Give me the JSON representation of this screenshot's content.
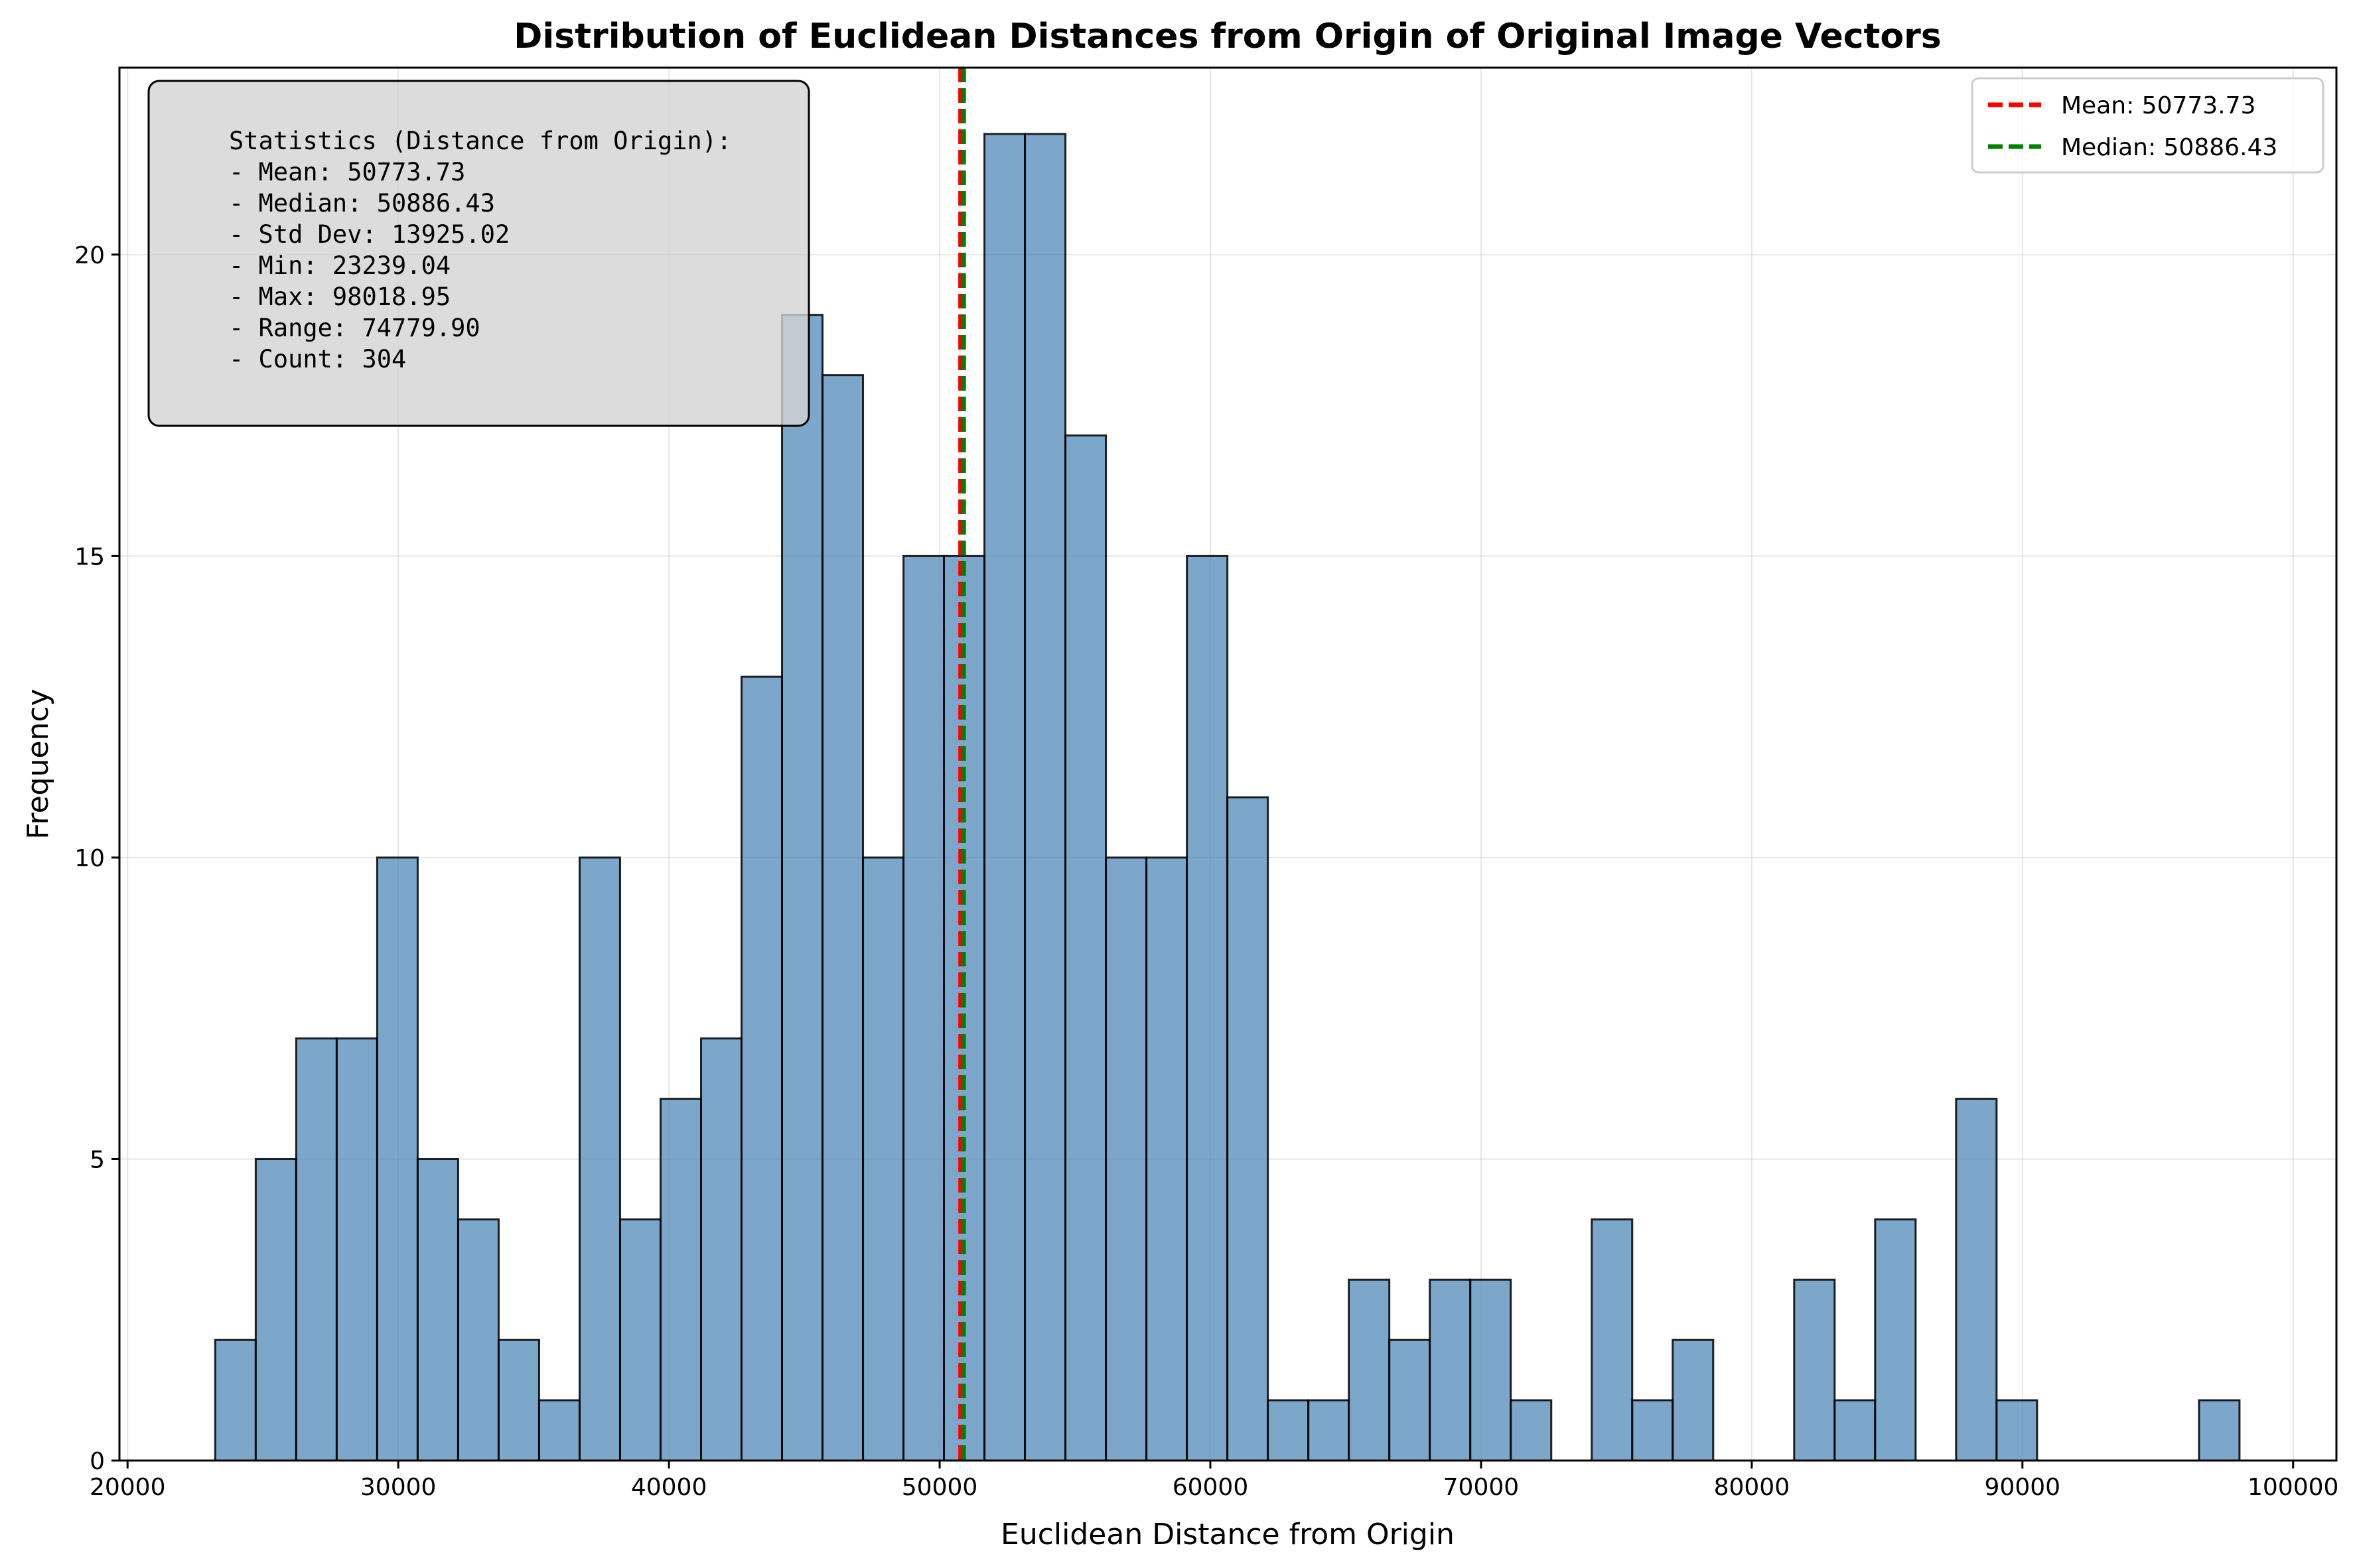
{
  "chart_data": {
    "type": "bar",
    "title": "Distribution of Euclidean Distances from Origin of Original Image Vectors",
    "xlabel": "Euclidean Distance from Origin",
    "ylabel": "Frequency",
    "xlim": [
      19700,
      101600
    ],
    "ylim": [
      0,
      23.1
    ],
    "xticks": [
      20000,
      30000,
      40000,
      50000,
      60000,
      70000,
      80000,
      90000,
      100000
    ],
    "yticks": [
      0,
      5,
      10,
      15,
      20
    ],
    "grid": true,
    "bins": {
      "start": 23239.04,
      "width": 1495.6,
      "counts": [
        2,
        5,
        7,
        7,
        10,
        5,
        4,
        2,
        1,
        10,
        4,
        6,
        7,
        13,
        19,
        18,
        10,
        15,
        15,
        22,
        22,
        17,
        10,
        10,
        15,
        11,
        1,
        1,
        3,
        2,
        3,
        3,
        1,
        0,
        4,
        1,
        2,
        0,
        0,
        3,
        1,
        4,
        0,
        6,
        1,
        0,
        0,
        0,
        0,
        1
      ]
    },
    "lines": [
      {
        "name": "Mean: 50773.73",
        "value": 50773.73,
        "color": "#ff0000"
      },
      {
        "name": "Median: 50886.43",
        "value": 50886.43,
        "color": "#008000"
      }
    ],
    "legend": {
      "placement": "top-right",
      "entries": [
        "Mean: 50773.73",
        "Median: 50886.43"
      ]
    },
    "stats_box": {
      "placement": "top-left",
      "lines": [
        "Statistics (Distance from Origin):",
        "- Mean: 50773.73",
        "- Median: 50886.43",
        "- Std Dev: 13925.02",
        "- Min: 23239.04",
        "- Max: 98018.95",
        "- Range: 74779.90",
        "- Count: 304"
      ]
    },
    "colors": {
      "bar": "#4682b4",
      "mean_line": "#ff0000",
      "median_line": "#008000"
    }
  }
}
